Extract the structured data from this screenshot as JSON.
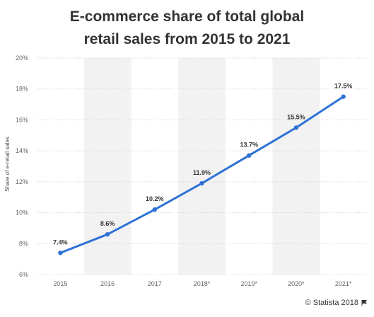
{
  "title_line1": "E-commerce share of total global",
  "title_line2": "retail sales from 2015 to 2021",
  "footer": "© Statista 2018",
  "chart_data": {
    "type": "line",
    "ylabel": "Share of e-retail sales",
    "xlabel": "",
    "categories": [
      "2015",
      "2016",
      "2017",
      "2018*",
      "2019*",
      "2020*",
      "2021*"
    ],
    "series": [
      {
        "values": [
          7.4,
          8.6,
          10.2,
          11.9,
          13.7,
          15.5,
          17.5
        ],
        "labels": [
          "7.4%",
          "8.6%",
          "10.2%",
          "11.9%",
          "13.7%",
          "15.5%",
          "17.5%"
        ]
      }
    ],
    "ylim": [
      6,
      20
    ],
    "yticks": [
      6,
      8,
      10,
      12,
      14,
      16,
      18,
      20
    ],
    "ytick_labels": [
      "6%",
      "8%",
      "10%",
      "12%",
      "14%",
      "16%",
      "18%",
      "20%"
    ],
    "grid": true,
    "colors": {
      "line": "#2f72d6",
      "band": "#f2f2f2",
      "grid": "#d0d0d0",
      "text": "#333333",
      "axis": "#666666"
    }
  }
}
